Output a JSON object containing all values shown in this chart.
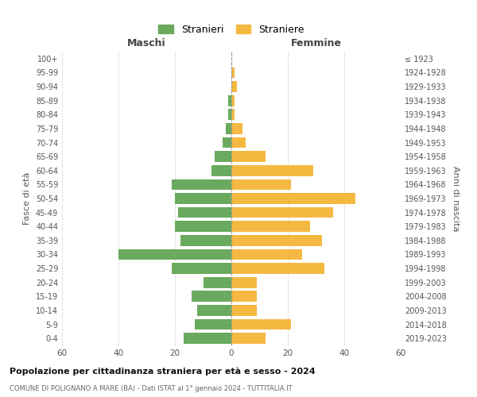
{
  "age_groups": [
    "0-4",
    "5-9",
    "10-14",
    "15-19",
    "20-24",
    "25-29",
    "30-34",
    "35-39",
    "40-44",
    "45-49",
    "50-54",
    "55-59",
    "60-64",
    "65-69",
    "70-74",
    "75-79",
    "80-84",
    "85-89",
    "90-94",
    "95-99",
    "100+"
  ],
  "birth_years": [
    "2019-2023",
    "2014-2018",
    "2009-2013",
    "2004-2008",
    "1999-2003",
    "1994-1998",
    "1989-1993",
    "1984-1988",
    "1979-1983",
    "1974-1978",
    "1969-1973",
    "1964-1968",
    "1959-1963",
    "1954-1958",
    "1949-1953",
    "1944-1948",
    "1939-1943",
    "1934-1938",
    "1929-1933",
    "1924-1928",
    "≤ 1923"
  ],
  "males": [
    17,
    13,
    12,
    14,
    10,
    21,
    40,
    18,
    20,
    19,
    20,
    21,
    7,
    6,
    3,
    2,
    1,
    1,
    0,
    0,
    0
  ],
  "females": [
    12,
    21,
    9,
    9,
    9,
    33,
    25,
    32,
    28,
    36,
    44,
    21,
    29,
    12,
    5,
    4,
    1,
    1,
    2,
    1,
    0
  ],
  "male_color": "#6aaa5e",
  "female_color": "#f5b942",
  "title": "Popolazione per cittadinanza straniera per età e sesso - 2024",
  "subtitle": "COMUNE DI POLIGNANO A MARE (BA) - Dati ISTAT al 1° gennaio 2024 - TUTTITALIA.IT",
  "xlabel_left": "Maschi",
  "xlabel_right": "Femmine",
  "ylabel_left": "Fasce di età",
  "ylabel_right": "Anni di nascita",
  "legend_male": "Stranieri",
  "legend_female": "Straniere",
  "xlim": 60,
  "background_color": "#ffffff",
  "grid_color": "#cccccc"
}
